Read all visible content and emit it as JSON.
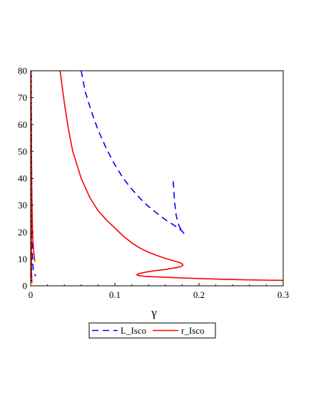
{
  "chart_data": {
    "type": "line",
    "title": "",
    "xlabel": "γ",
    "ylabel": "",
    "xlim": [
      0,
      0.3
    ],
    "ylim": [
      0,
      80
    ],
    "grid": false,
    "legend_position": "bottom",
    "x_ticks": [
      {
        "value": 0,
        "label": "0"
      },
      {
        "value": 0.1,
        "label": "0.1"
      },
      {
        "value": 0.2,
        "label": "0.2"
      },
      {
        "value": 0.3,
        "label": "0.3"
      }
    ],
    "y_ticks": [
      {
        "value": 0,
        "label": "0"
      },
      {
        "value": 10,
        "label": "10"
      },
      {
        "value": 20,
        "label": "20"
      },
      {
        "value": 30,
        "label": "30"
      },
      {
        "value": 40,
        "label": "40"
      },
      {
        "value": 50,
        "label": "50"
      },
      {
        "value": 60,
        "label": "60"
      },
      {
        "value": 70,
        "label": "70"
      },
      {
        "value": 80,
        "label": "80"
      }
    ],
    "series": [
      {
        "name": "L_Isco",
        "color": "#0000ff",
        "style": "dashed",
        "segments": [
          [
            [
              0.0005,
              80
            ],
            [
              0.0012,
              40
            ],
            [
              0.002,
              12
            ],
            [
              0.003,
              6
            ],
            [
              0.004,
              4.8
            ],
            [
              0.006,
              3.6
            ]
          ],
          [
            [
              0.06,
              80
            ],
            [
              0.065,
              72
            ],
            [
              0.072,
              65
            ],
            [
              0.08,
              58
            ],
            [
              0.09,
              51
            ],
            [
              0.1,
              45
            ],
            [
              0.11,
              40
            ],
            [
              0.12,
              36
            ],
            [
              0.13,
              32.5
            ],
            [
              0.14,
              29.5
            ],
            [
              0.15,
              27
            ],
            [
              0.16,
              24.6
            ],
            [
              0.17,
              22.6
            ],
            [
              0.175,
              21.5
            ],
            [
              0.18,
              20.3
            ],
            [
              0.182,
              19.5
            ],
            [
              0.179,
              20.8
            ],
            [
              0.176,
              22.5
            ],
            [
              0.173,
              26
            ],
            [
              0.171,
              31
            ],
            [
              0.17,
              36
            ],
            [
              0.169,
              40.5
            ]
          ]
        ]
      },
      {
        "name": "r_Isco",
        "color": "#ff0000",
        "style": "solid",
        "segments": [
          [
            [
              0.0005,
              80
            ],
            [
              0.0008,
              55
            ],
            [
              0.0012,
              38
            ],
            [
              0.0018,
              26
            ],
            [
              0.0025,
              18
            ],
            [
              0.0035,
              13
            ],
            [
              0.005,
              9
            ]
          ],
          [
            [
              0.0005,
              80
            ],
            [
              0.0006,
              40
            ],
            [
              0.0008,
              15
            ],
            [
              0.001,
              6
            ],
            [
              0.0012,
              3
            ],
            [
              0.0015,
              1
            ]
          ],
          [
            [
              0.035,
              80
            ],
            [
              0.04,
              68
            ],
            [
              0.045,
              58
            ],
            [
              0.05,
              50
            ],
            [
              0.06,
              40
            ],
            [
              0.07,
              33
            ],
            [
              0.08,
              28
            ],
            [
              0.09,
              24.5
            ],
            [
              0.1,
              21.5
            ],
            [
              0.11,
              18.5
            ],
            [
              0.12,
              16
            ],
            [
              0.13,
              14
            ],
            [
              0.14,
              12.5
            ],
            [
              0.15,
              11.3
            ],
            [
              0.16,
              10.2
            ],
            [
              0.17,
              9.3
            ],
            [
              0.177,
              8.6
            ],
            [
              0.18,
              8.2
            ],
            [
              0.181,
              7.7
            ],
            [
              0.178,
              7.1
            ],
            [
              0.17,
              6.6
            ],
            [
              0.16,
              6.1
            ],
            [
              0.145,
              5.5
            ],
            [
              0.135,
              5.0
            ],
            [
              0.128,
              4.5
            ],
            [
              0.126,
              4.1
            ],
            [
              0.128,
              3.8
            ],
            [
              0.135,
              3.55
            ],
            [
              0.15,
              3.3
            ],
            [
              0.17,
              3.05
            ],
            [
              0.2,
              2.7
            ],
            [
              0.23,
              2.4
            ],
            [
              0.26,
              2.2
            ],
            [
              0.3,
              2.0
            ]
          ]
        ]
      }
    ]
  }
}
